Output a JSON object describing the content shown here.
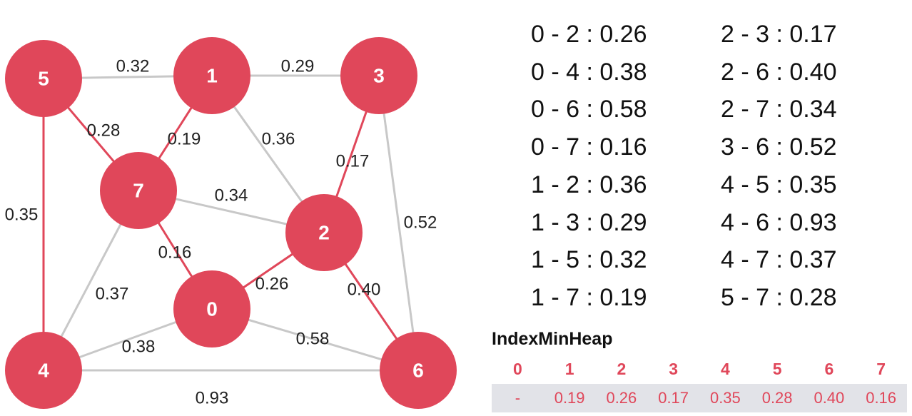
{
  "graph": {
    "nodes": [
      {
        "id": "5"
      },
      {
        "id": "1"
      },
      {
        "id": "3"
      },
      {
        "id": "7"
      },
      {
        "id": "2"
      },
      {
        "id": "0"
      },
      {
        "id": "4"
      },
      {
        "id": "6"
      }
    ],
    "edges": [
      {
        "from": "5",
        "to": "1",
        "weight": "0.32",
        "in_mst": false
      },
      {
        "from": "1",
        "to": "3",
        "weight": "0.29",
        "in_mst": false
      },
      {
        "from": "5",
        "to": "7",
        "weight": "0.28",
        "in_mst": true
      },
      {
        "from": "1",
        "to": "7",
        "weight": "0.19",
        "in_mst": true
      },
      {
        "from": "1",
        "to": "2",
        "weight": "0.36",
        "in_mst": false
      },
      {
        "from": "3",
        "to": "2",
        "weight": "0.17",
        "in_mst": true
      },
      {
        "from": "3",
        "to": "6",
        "weight": "0.52",
        "in_mst": false
      },
      {
        "from": "7",
        "to": "2",
        "weight": "0.34",
        "in_mst": false
      },
      {
        "from": "5",
        "to": "4",
        "weight": "0.35",
        "in_mst": true
      },
      {
        "from": "7",
        "to": "0",
        "weight": "0.16",
        "in_mst": true
      },
      {
        "from": "7",
        "to": "4",
        "weight": "0.37",
        "in_mst": false
      },
      {
        "from": "0",
        "to": "2",
        "weight": "0.26",
        "in_mst": true
      },
      {
        "from": "2",
        "to": "6",
        "weight": "0.40",
        "in_mst": true
      },
      {
        "from": "0",
        "to": "6",
        "weight": "0.58",
        "in_mst": false
      },
      {
        "from": "0",
        "to": "4",
        "weight": "0.38",
        "in_mst": false
      },
      {
        "from": "4",
        "to": "6",
        "weight": "0.93",
        "in_mst": false
      }
    ],
    "colors": {
      "node": "#e0475a",
      "mst_edge": "#e0475a",
      "edge": "#c8c8c8"
    }
  },
  "edge_list": {
    "column1": [
      "0 - 2 : 0.26",
      "0 - 4 : 0.38",
      "0 - 6 : 0.58",
      "0 - 7 : 0.16",
      "1 - 2 : 0.36",
      "1 - 3 : 0.29",
      "1 - 5 : 0.32",
      "1 - 7 : 0.19"
    ],
    "column2": [
      "2 - 3 : 0.17",
      "2 - 6 : 0.40",
      "2 - 7 : 0.34",
      "3 - 6 : 0.52",
      "4 - 5 : 0.35",
      "4 - 6 : 0.93",
      "4 - 7 : 0.37",
      "5 - 7 : 0.28"
    ]
  },
  "heap": {
    "title": "IndexMinHeap",
    "indices": [
      "0",
      "1",
      "2",
      "3",
      "4",
      "5",
      "6",
      "7"
    ],
    "values": [
      "-",
      "0.19",
      "0.26",
      "0.17",
      "0.35",
      "0.28",
      "0.40",
      "0.16"
    ]
  }
}
